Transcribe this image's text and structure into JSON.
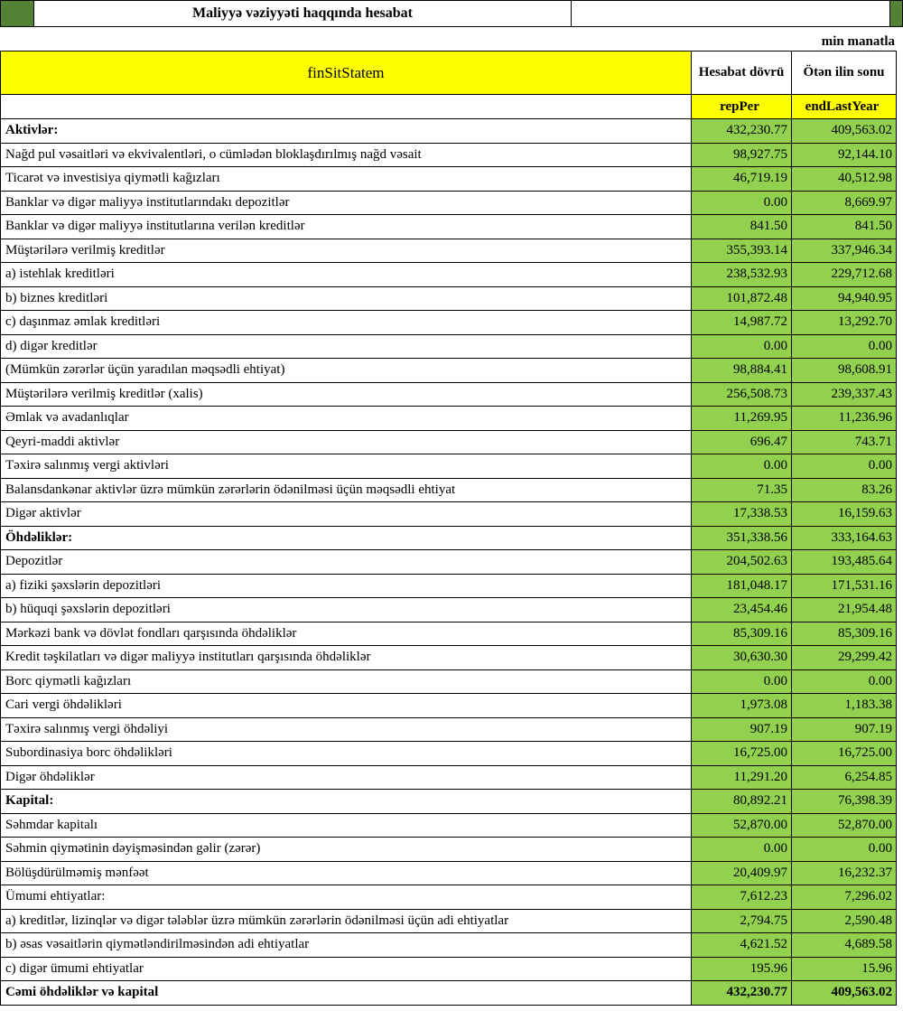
{
  "title": "Maliyyə vəziyyəti haqqında hesabat",
  "unit_note": "min manatla",
  "colors": {
    "value_cell_green": "#92D050",
    "corner_block_green": "#538135",
    "header_yellow": "#FFFF00",
    "border_black": "#000000"
  },
  "header": {
    "form_code": "finSitStatem",
    "col_report_period_label": "Hesabat dövrü",
    "col_last_year_label": "Ötən ilin sonu",
    "col_report_period_code": "repPer",
    "col_last_year_code": "endLastYear"
  },
  "table": {
    "rows": [
      {
        "label": "Aktivlər:",
        "rep": "432,230.77",
        "last": "409,563.02",
        "section": true
      },
      {
        "label": "Nağd pul vəsaitləri və  ekvivalentləri, o cümlədən bloklaşdırılmış nağd vəsait",
        "rep": "98,927.75",
        "last": "92,144.10"
      },
      {
        "label": "Ticarət və investisiya qiymətli kağızları",
        "rep": "46,719.19",
        "last": "40,512.98"
      },
      {
        "label": "Banklar və digər maliyyə institutlarındakı depozitlər",
        "rep": "0.00",
        "last": "8,669.97"
      },
      {
        "label": "Banklar və digər maliyyə institutlarına verilən kreditlər",
        "rep": "841.50",
        "last": "841.50"
      },
      {
        "label": "Müştərilərə verilmiş kreditlər",
        "rep": "355,393.14",
        "last": "337,946.34"
      },
      {
        "label": "a) istehlak kreditləri",
        "rep": "238,532.93",
        "last": "229,712.68"
      },
      {
        "label": "b) biznes kreditləri",
        "rep": "101,872.48",
        "last": "94,940.95"
      },
      {
        "label": "c) daşınmaz əmlak kreditləri",
        "rep": "14,987.72",
        "last": "13,292.70"
      },
      {
        "label": "d) digər kreditlər",
        "rep": "0.00",
        "last": "0.00"
      },
      {
        "label": "(Mümkün zərərlər üçün yaradılan məqsədli ehtiyat)",
        "rep": "98,884.41",
        "last": "98,608.91"
      },
      {
        "label": "Müştərilərə verilmiş kreditlər (xalis)",
        "rep": "256,508.73",
        "last": "239,337.43"
      },
      {
        "label": "Əmlak və avadanlıqlar",
        "rep": "11,269.95",
        "last": "11,236.96"
      },
      {
        "label": "Qeyri-maddi aktivlər",
        "rep": "696.47",
        "last": "743.71"
      },
      {
        "label": "Təxirə salınmış vergi aktivləri",
        "rep": "0.00",
        "last": "0.00"
      },
      {
        "label": "Balansdankənar aktivlər üzrə mümkün zərərlərin ödənilməsi üçün məqsədli ehtiyat",
        "rep": "71.35",
        "last": "83.26"
      },
      {
        "label": "Digər aktivlər",
        "rep": "17,338.53",
        "last": "16,159.63"
      },
      {
        "label": "Öhdəliklər:",
        "rep": "351,338.56",
        "last": "333,164.63",
        "section": true
      },
      {
        "label": "Depozitlər",
        "rep": "204,502.63",
        "last": "193,485.64"
      },
      {
        "label": "a) fiziki şəxslərin depozitləri",
        "rep": "181,048.17",
        "last": "171,531.16"
      },
      {
        "label": "b) hüquqi şəxslərin depozitləri",
        "rep": "23,454.46",
        "last": "21,954.48"
      },
      {
        "label": "Mərkəzi bank və dövlət fondları qarşısında öhdəliklər",
        "rep": "85,309.16",
        "last": "85,309.16"
      },
      {
        "label": "Kredit təşkilatları və digər maliyyə institutları qarşısında öhdəliklər",
        "rep": "30,630.30",
        "last": "29,299.42"
      },
      {
        "label": "Borc qiymətli kağızları",
        "rep": "0.00",
        "last": "0.00"
      },
      {
        "label": "Cari vergi öhdəlikləri",
        "rep": "1,973.08",
        "last": "1,183.38"
      },
      {
        "label": "Təxirə salınmış vergi öhdəliyi",
        "rep": "907.19",
        "last": "907.19"
      },
      {
        "label": "Subordinasiya borc öhdəlikləri",
        "rep": "16,725.00",
        "last": "16,725.00"
      },
      {
        "label": "Digər öhdəliklər",
        "rep": "11,291.20",
        "last": "6,254.85"
      },
      {
        "label": "Kapital:",
        "rep": "80,892.21",
        "last": "76,398.39",
        "section": true
      },
      {
        "label": "Səhmdar kapitalı",
        "rep": "52,870.00",
        "last": "52,870.00"
      },
      {
        "label": "Səhmin qiymətinin dəyişməsindən gəlir (zərər)",
        "rep": "0.00",
        "last": "0.00"
      },
      {
        "label": "Bölüşdürülməmiş mənfəət",
        "rep": "20,409.97",
        "last": "16,232.37"
      },
      {
        "label": "Ümumi ehtiyatlar:",
        "rep": "7,612.23",
        "last": "7,296.02"
      },
      {
        "label": "a) kreditlər, lizinqlər və digər tələblər üzrə mümkün zərərlərin ödənilməsi üçün adi ehtiyatlar",
        "rep": "2,794.75",
        "last": "2,590.48"
      },
      {
        "label": "b) əsas vəsaitlərin qiymətləndirilməsindən adi ehtiyatlar",
        "rep": "4,621.52",
        "last": "4,689.58"
      },
      {
        "label": "c) digər ümumi ehtiyatlar",
        "rep": "195.96",
        "last": "15.96"
      },
      {
        "label": "Cəmi öhdəliklər və kapital",
        "rep": "432,230.77",
        "last": "409,563.02",
        "section": true,
        "total": true
      }
    ]
  }
}
